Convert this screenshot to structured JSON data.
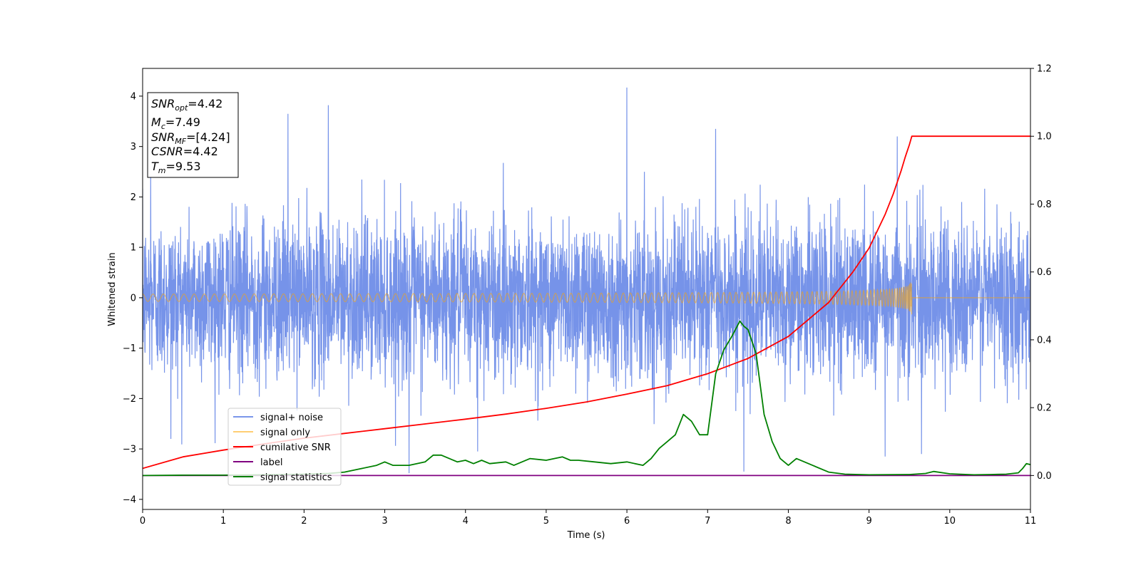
{
  "chart_data": {
    "type": "line",
    "xlabel": "Time (s)",
    "ylabel": "Whitened strain",
    "xlim": [
      0,
      11
    ],
    "ylim_left": [
      -4.2,
      4.55
    ],
    "ylim_right": [
      -0.1,
      1.2
    ],
    "x_ticks": [
      0,
      1,
      2,
      3,
      4,
      5,
      6,
      7,
      8,
      9,
      10,
      11
    ],
    "y_ticks_left": [
      -4,
      -3,
      -2,
      -1,
      0,
      1,
      2,
      3,
      4
    ],
    "y_ticks_left_labels": [
      "−4",
      "−3",
      "−2",
      "−1",
      "0",
      "1",
      "2",
      "3",
      "4"
    ],
    "y_ticks_right": [
      0.0,
      0.2,
      0.4,
      0.6,
      0.8,
      1.0,
      1.2
    ],
    "y_ticks_right_labels": [
      "0.0",
      "0.2",
      "0.4",
      "0.6",
      "0.8",
      "1.0",
      "1.2"
    ],
    "grid": false,
    "legend_position": "lower-left",
    "info_box": {
      "snr_opt": {
        "sym": "SNR",
        "sub": "opt",
        "value": "=4.42"
      },
      "mc": {
        "sym": "M",
        "sub": "c",
        "value": "=7.49"
      },
      "snr_mf": {
        "sym": "SNR",
        "sub": "MF",
        "value": "=[4.24]"
      },
      "csnr": {
        "sym": "CSNR",
        "value": "=4.42"
      },
      "tm": {
        "sym": "T",
        "sub": "m",
        "value": "=9.53"
      }
    },
    "series": [
      {
        "name": "signal+ noise",
        "color": "#4169e1",
        "axis": "left",
        "kind": "noise",
        "std": 0.78,
        "notable_peaks": [
          [
            0.1,
            2.5
          ],
          [
            1.8,
            3.65
          ],
          [
            2.3,
            3.82
          ],
          [
            6.0,
            4.17
          ],
          [
            7.1,
            3.35
          ],
          [
            9.35,
            3.2
          ],
          [
            0.35,
            -2.8
          ],
          [
            3.3,
            -3.48
          ],
          [
            4.15,
            -3.05
          ],
          [
            7.45,
            -3.45
          ],
          [
            9.2,
            -3.15
          ],
          [
            9.65,
            -3.1
          ]
        ]
      },
      {
        "name": "signal only",
        "color": "#ffa500",
        "axis": "left",
        "kind": "chirp",
        "merger_time": 9.53,
        "peak_amplitude": 0.6
      },
      {
        "name": "cumilative SNR",
        "color": "#ff0000",
        "axis": "right",
        "x": [
          0,
          0.5,
          1,
          1.5,
          2,
          2.5,
          3,
          3.5,
          4,
          4.5,
          5,
          5.5,
          6,
          6.5,
          7,
          7.5,
          8,
          8.5,
          8.8,
          9,
          9.2,
          9.3,
          9.4,
          9.45,
          9.5,
          9.53,
          11
        ],
        "values": [
          0.021,
          0.055,
          0.075,
          0.093,
          0.11,
          0.124,
          0.138,
          0.152,
          0.166,
          0.181,
          0.198,
          0.217,
          0.24,
          0.265,
          0.3,
          0.345,
          0.41,
          0.51,
          0.6,
          0.67,
          0.77,
          0.83,
          0.9,
          0.94,
          0.975,
          1.0,
          1.0
        ]
      },
      {
        "name": "label",
        "color": "#800080",
        "axis": "right",
        "x": [
          0,
          11
        ],
        "values": [
          0.0,
          0.0
        ]
      },
      {
        "name": "signal statistics",
        "color": "#008000",
        "axis": "right",
        "x": [
          0,
          0.5,
          1,
          1.5,
          2,
          2.3,
          2.5,
          2.7,
          2.9,
          3.0,
          3.1,
          3.3,
          3.5,
          3.6,
          3.7,
          3.8,
          3.9,
          4.0,
          4.1,
          4.2,
          4.3,
          4.5,
          4.6,
          4.8,
          5.0,
          5.1,
          5.2,
          5.3,
          5.4,
          5.6,
          5.8,
          6.0,
          6.2,
          6.3,
          6.4,
          6.5,
          6.6,
          6.7,
          6.8,
          6.9,
          7.0,
          7.1,
          7.2,
          7.3,
          7.4,
          7.45,
          7.5,
          7.6,
          7.7,
          7.8,
          7.9,
          8.0,
          8.1,
          8.3,
          8.5,
          8.7,
          9.0,
          9.5,
          9.7,
          9.8,
          10.0,
          10.3,
          10.5,
          10.7,
          10.85,
          10.9,
          10.95,
          11.0
        ],
        "values": [
          0.0,
          0.001,
          0.001,
          0.002,
          0.004,
          0.006,
          0.01,
          0.02,
          0.03,
          0.04,
          0.03,
          0.03,
          0.04,
          0.06,
          0.06,
          0.05,
          0.04,
          0.045,
          0.035,
          0.045,
          0.035,
          0.04,
          0.03,
          0.05,
          0.045,
          0.05,
          0.055,
          0.045,
          0.045,
          0.04,
          0.035,
          0.04,
          0.03,
          0.05,
          0.08,
          0.1,
          0.12,
          0.18,
          0.16,
          0.12,
          0.12,
          0.3,
          0.37,
          0.41,
          0.455,
          0.44,
          0.43,
          0.36,
          0.18,
          0.1,
          0.05,
          0.03,
          0.05,
          0.03,
          0.01,
          0.004,
          0.002,
          0.003,
          0.006,
          0.012,
          0.005,
          0.002,
          0.003,
          0.004,
          0.008,
          0.02,
          0.035,
          0.032
        ]
      }
    ]
  }
}
